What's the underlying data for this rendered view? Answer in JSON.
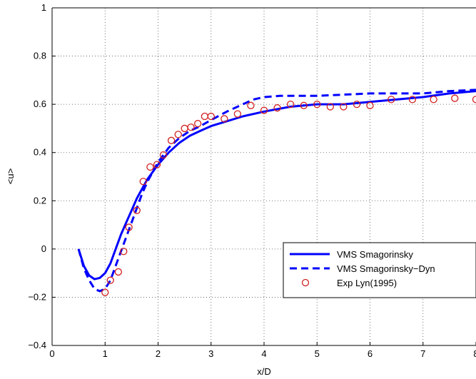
{
  "chart_data": {
    "type": "line",
    "title": "",
    "xlabel": "x/D",
    "ylabel": "<u>",
    "xlim": [
      0,
      8
    ],
    "ylim": [
      -0.4,
      1
    ],
    "xticks": [
      "0",
      "1",
      "2",
      "3",
      "4",
      "5",
      "6",
      "7",
      "8"
    ],
    "yticks": [
      "−0.4",
      "−0.2",
      "0",
      "0.2",
      "0.4",
      "0.6",
      "0.8",
      "1"
    ],
    "grid": true,
    "legend_position": "lower-right",
    "series": [
      {
        "name": "VMS Smagorinsky",
        "style": "solid",
        "color": "#0000ff",
        "x": [
          0.5,
          0.6,
          0.7,
          0.8,
          0.9,
          1.0,
          1.1,
          1.2,
          1.3,
          1.4,
          1.5,
          1.6,
          1.7,
          1.8,
          1.9,
          2.0,
          2.2,
          2.4,
          2.6,
          2.8,
          3.0,
          3.3,
          3.6,
          4.0,
          4.5,
          5.0,
          5.5,
          6.0,
          6.5,
          7.0,
          7.5,
          8.0
        ],
        "y": [
          0.0,
          -0.07,
          -0.11,
          -0.125,
          -0.12,
          -0.1,
          -0.06,
          0.0,
          0.06,
          0.11,
          0.16,
          0.21,
          0.25,
          0.29,
          0.32,
          0.35,
          0.4,
          0.44,
          0.47,
          0.49,
          0.51,
          0.53,
          0.55,
          0.57,
          0.59,
          0.6,
          0.6,
          0.61,
          0.62,
          0.63,
          0.645,
          0.655
        ]
      },
      {
        "name": "VMS Smagorinsky−Dyn",
        "style": "dashed",
        "color": "#0000ff",
        "x": [
          0.5,
          0.6,
          0.7,
          0.8,
          0.9,
          1.0,
          1.1,
          1.2,
          1.3,
          1.4,
          1.5,
          1.6,
          1.7,
          1.8,
          1.9,
          2.0,
          2.2,
          2.4,
          2.6,
          2.8,
          3.0,
          3.3,
          3.6,
          3.8,
          4.0,
          4.3,
          4.6,
          5.0,
          5.5,
          6.0,
          6.5,
          7.0,
          7.5,
          8.0
        ],
        "y": [
          0.0,
          -0.08,
          -0.13,
          -0.165,
          -0.175,
          -0.165,
          -0.13,
          -0.07,
          -0.01,
          0.05,
          0.11,
          0.17,
          0.23,
          0.28,
          0.32,
          0.36,
          0.42,
          0.46,
          0.49,
          0.51,
          0.535,
          0.57,
          0.6,
          0.62,
          0.63,
          0.635,
          0.635,
          0.635,
          0.64,
          0.645,
          0.645,
          0.645,
          0.655,
          0.66
        ]
      },
      {
        "name": "Exp Lyn(1995)",
        "style": "markers",
        "color": "#d22020",
        "x": [
          1.0,
          1.1,
          1.25,
          1.35,
          1.45,
          1.6,
          1.72,
          1.85,
          1.98,
          2.1,
          2.25,
          2.38,
          2.5,
          2.62,
          2.75,
          2.88,
          3.0,
          3.25,
          3.5,
          3.75,
          4.0,
          4.25,
          4.5,
          4.75,
          5.0,
          5.25,
          5.5,
          5.75,
          6.0,
          6.4,
          6.8,
          7.2,
          7.6,
          8.0
        ],
        "y": [
          -0.18,
          -0.13,
          -0.095,
          -0.01,
          0.09,
          0.16,
          0.28,
          0.34,
          0.35,
          0.39,
          0.45,
          0.475,
          0.5,
          0.505,
          0.52,
          0.55,
          0.55,
          0.54,
          0.56,
          0.595,
          0.575,
          0.585,
          0.6,
          0.595,
          0.6,
          0.59,
          0.59,
          0.6,
          0.595,
          0.62,
          0.62,
          0.62,
          0.625,
          0.62
        ]
      }
    ]
  }
}
